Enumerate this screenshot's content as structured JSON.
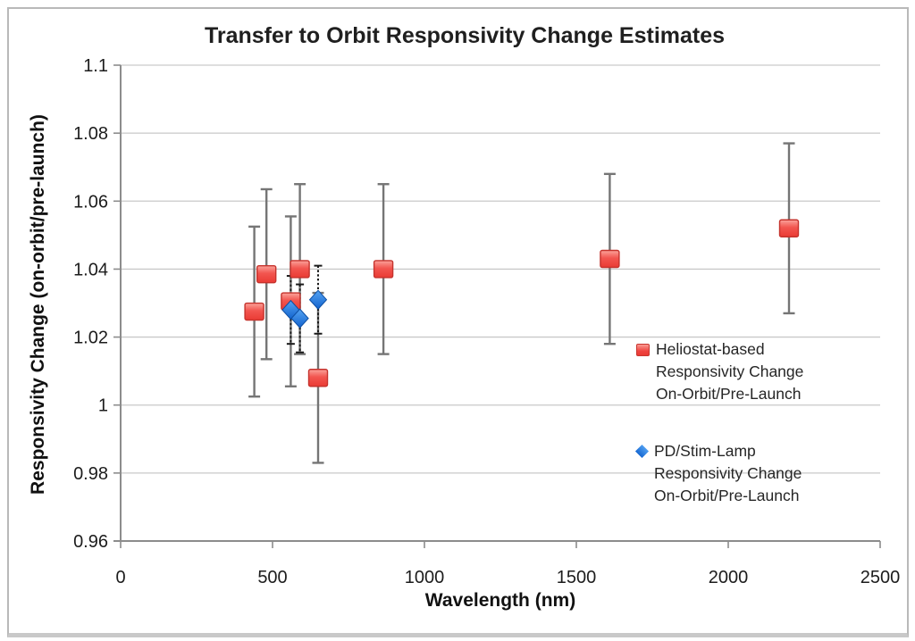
{
  "chart_data": {
    "type": "scatter",
    "title": "Transfer to Orbit Responsivity Change Estimates",
    "xlabel": "Wavelength (nm)",
    "ylabel": "Responsivity Change (on-orbit/pre-launch)",
    "xlim": [
      0,
      2500
    ],
    "ylim": [
      0.96,
      1.1
    ],
    "grid": "horizontal",
    "x_ticks": [
      {
        "value": 0,
        "label": "0"
      },
      {
        "value": 500,
        "label": "500"
      },
      {
        "value": 1000,
        "label": "1000"
      },
      {
        "value": 1500,
        "label": "1500"
      },
      {
        "value": 2000,
        "label": "2000"
      },
      {
        "value": 2500,
        "label": "2500"
      }
    ],
    "y_ticks": [
      {
        "value": 1.1,
        "label": "1.1"
      },
      {
        "value": 1.08,
        "label": "1.08"
      },
      {
        "value": 1.06,
        "label": "1.06"
      },
      {
        "value": 1.04,
        "label": "1.04"
      },
      {
        "value": 1.02,
        "label": "1.02"
      },
      {
        "value": 1.0,
        "label": "1"
      },
      {
        "value": 0.98,
        "label": "0.98"
      },
      {
        "value": 0.96,
        "label": "0.96"
      }
    ],
    "series": [
      {
        "name": "Heliostat-based Responsivity Change On-Orbit/Pre-Launch",
        "marker": "square",
        "marker_color": "#ef4440",
        "error": 0.025,
        "error_style": "solid-gray",
        "error_color": "#757575",
        "points": [
          {
            "x": 440,
            "y": 1.0275
          },
          {
            "x": 480,
            "y": 1.0385
          },
          {
            "x": 560,
            "y": 1.0305
          },
          {
            "x": 590,
            "y": 1.04
          },
          {
            "x": 650,
            "y": 1.008
          },
          {
            "x": 865,
            "y": 1.04
          },
          {
            "x": 1610,
            "y": 1.043
          },
          {
            "x": 2200,
            "y": 1.052
          }
        ]
      },
      {
        "name": "PD/Stim-Lamp Responsivity Change On-Orbit/Pre-Launch",
        "marker": "diamond",
        "marker_color": "#1a6fd6",
        "error": 0.01,
        "error_style": "dotted-black",
        "error_color": "#1a1a1a",
        "points": [
          {
            "x": 560,
            "y": 1.028
          },
          {
            "x": 590,
            "y": 1.0255
          },
          {
            "x": 650,
            "y": 1.031
          }
        ]
      }
    ],
    "legend_position": "right-middle",
    "legend": [
      {
        "marker": "square",
        "lines": [
          "Heliostat-based",
          "Responsivity Change",
          "On-Orbit/Pre-Launch"
        ]
      },
      {
        "marker": "diamond",
        "lines": [
          "PD/Stim-Lamp",
          "Responsivity Change",
          "On-Orbit/Pre-Launch"
        ]
      }
    ]
  }
}
